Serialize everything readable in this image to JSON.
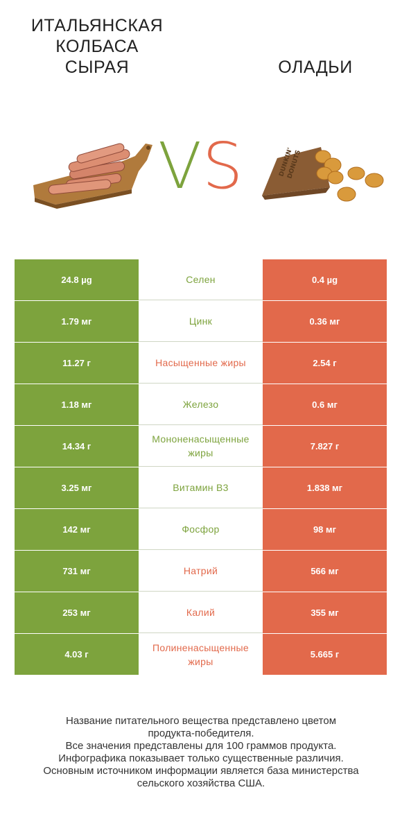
{
  "header": {
    "left_title": "ИТАЛЬЯНСКАЯ\nКОЛБАСА\nСЫРАЯ",
    "right_title": "ОЛАДЬИ",
    "vs_v": "V",
    "vs_s": "S"
  },
  "colors": {
    "left": "#7da33d",
    "right": "#e2694b",
    "left_text": "#7da33d",
    "right_text": "#e2694b"
  },
  "chart_data": {
    "type": "table",
    "columns": [
      "ИТАЛЬЯНСКАЯ КОЛБАСА СЫРАЯ",
      "",
      "ОЛАДЬИ"
    ],
    "rows": [
      {
        "nutrient": "Селен",
        "left": "24.8 µg",
        "right": "0.4 µg",
        "winner": "left"
      },
      {
        "nutrient": "Цинк",
        "left": "1.79 мг",
        "right": "0.36 мг",
        "winner": "left"
      },
      {
        "nutrient": "Насыщенные жиры",
        "left": "11.27 г",
        "right": "2.54 г",
        "winner": "right"
      },
      {
        "nutrient": "Железо",
        "left": "1.18 мг",
        "right": "0.6 мг",
        "winner": "left"
      },
      {
        "nutrient": "Мононенасыщенные жиры",
        "left": "14.34 г",
        "right": "7.827 г",
        "winner": "left"
      },
      {
        "nutrient": "Витамин B3",
        "left": "3.25 мг",
        "right": "1.838 мг",
        "winner": "left"
      },
      {
        "nutrient": "Фосфор",
        "left": "142 мг",
        "right": "98 мг",
        "winner": "left"
      },
      {
        "nutrient": "Натрий",
        "left": "731 мг",
        "right": "566 мг",
        "winner": "right"
      },
      {
        "nutrient": "Калий",
        "left": "253 мг",
        "right": "355 мг",
        "winner": "right"
      },
      {
        "nutrient": "Полиненасыщенные жиры",
        "left": "4.03 г",
        "right": "5.665 г",
        "winner": "right"
      }
    ]
  },
  "footnote": {
    "line1": "Название питательного вещества представлено цветом",
    "line2": "продукта-победителя.",
    "line3": "Все значения представлены для 100 граммов продукта.",
    "line4": "Инфографика показывает только существенные различия.",
    "line5": "Основным источником информации является база министерства",
    "line6": "сельского хозяйства США."
  }
}
